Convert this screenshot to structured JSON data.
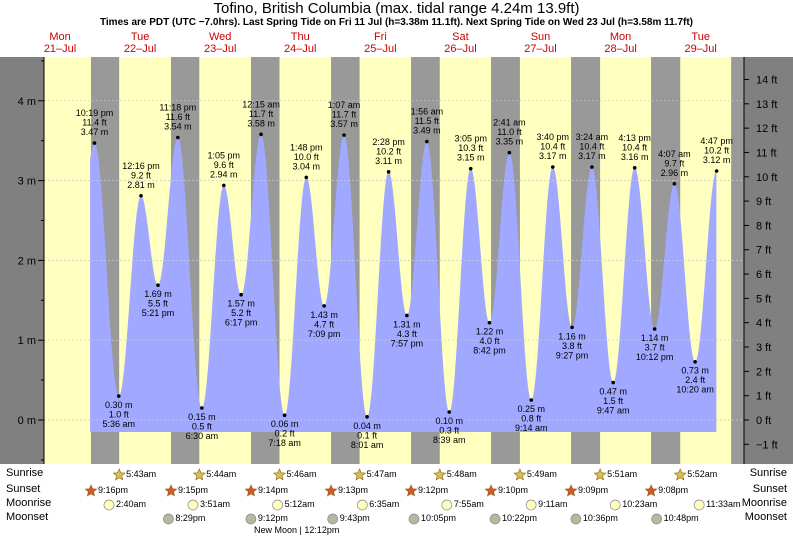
{
  "header": {
    "title": "Tofino, British Columbia (max. tidal range 4.24m 13.9ft)",
    "subtitle": "Times are PDT (UTC −7.0hrs). Last Spring Tide on Fri 11 Jul (h=3.38m 11.1ft). Next Spring Tide on Wed 23 Jul (h=3.58m 11.7ft)"
  },
  "days": [
    {
      "dow": "Mon",
      "date": "21–Jul"
    },
    {
      "dow": "Tue",
      "date": "22–Jul"
    },
    {
      "dow": "Wed",
      "date": "23–Jul"
    },
    {
      "dow": "Thu",
      "date": "24–Jul"
    },
    {
      "dow": "Fri",
      "date": "25–Jul"
    },
    {
      "dow": "Sat",
      "date": "26–Jul"
    },
    {
      "dow": "Sun",
      "date": "27–Jul"
    },
    {
      "dow": "Mon",
      "date": "28–Jul"
    },
    {
      "dow": "Tue",
      "date": "29–Jul"
    }
  ],
  "chart_data": {
    "type": "area",
    "y_left": {
      "unit": "m",
      "ticks": [
        "0 m",
        "1 m",
        "2 m",
        "3 m",
        "4 m"
      ],
      "range": [
        -0.6,
        4.6
      ]
    },
    "y_right": {
      "unit": "ft",
      "ticks": [
        "−1 ft",
        "0 ft",
        "1 ft",
        "2 ft",
        "3 ft",
        "4 ft",
        "5 ft",
        "6 ft",
        "7 ft",
        "8 ft",
        "9 ft",
        "10 ft",
        "11 ft",
        "12 ft",
        "13 ft",
        "14 ft"
      ]
    },
    "grid": true,
    "tides": [
      {
        "day": 0,
        "hour": 22.32,
        "type": "high",
        "m": 3.47,
        "labels": [
          "10:19 pm",
          "11.4 ft",
          "3.47 m"
        ]
      },
      {
        "day": 1,
        "hour": 5.6,
        "type": "low",
        "m": 0.3,
        "labels": [
          "0.30 m",
          "1.0 ft",
          "5:36 am"
        ]
      },
      {
        "day": 1,
        "hour": 12.27,
        "type": "high",
        "m": 2.81,
        "labels": [
          "12:16 pm",
          "9.2 ft",
          "2.81 m"
        ]
      },
      {
        "day": 1,
        "hour": 17.35,
        "type": "low",
        "m": 1.69,
        "labels": [
          "1.69 m",
          "5.5 ft",
          "5:21 pm"
        ]
      },
      {
        "day": 1,
        "hour": 23.3,
        "type": "high",
        "m": 3.54,
        "labels": [
          "11:18 pm",
          "11.6 ft",
          "3.54 m"
        ]
      },
      {
        "day": 2,
        "hour": 6.5,
        "type": "low",
        "m": 0.15,
        "labels": [
          "0.15 m",
          "0.5 ft",
          "6:30 am"
        ]
      },
      {
        "day": 2,
        "hour": 13.08,
        "type": "high",
        "m": 2.94,
        "labels": [
          "1:05 pm",
          "9.6 ft",
          "2.94 m"
        ]
      },
      {
        "day": 2,
        "hour": 18.28,
        "type": "low",
        "m": 1.57,
        "labels": [
          "1.57 m",
          "5.2 ft",
          "6:17 pm"
        ]
      },
      {
        "day": 3,
        "hour": 0.25,
        "type": "high",
        "m": 3.58,
        "labels": [
          "12:15 am",
          "11.7 ft",
          "3.58 m"
        ]
      },
      {
        "day": 3,
        "hour": 7.3,
        "type": "low",
        "m": 0.06,
        "labels": [
          "0.06 m",
          "0.2 ft",
          "7:18 am"
        ]
      },
      {
        "day": 3,
        "hour": 13.8,
        "type": "high",
        "m": 3.04,
        "labels": [
          "1:48 pm",
          "10.0 ft",
          "3.04 m"
        ]
      },
      {
        "day": 3,
        "hour": 19.15,
        "type": "low",
        "m": 1.43,
        "labels": [
          "1.43 m",
          "4.7 ft",
          "7:09 pm"
        ]
      },
      {
        "day": 4,
        "hour": 1.12,
        "type": "high",
        "m": 3.57,
        "labels": [
          "1:07 am",
          "11.7 ft",
          "3.57 m"
        ]
      },
      {
        "day": 4,
        "hour": 8.02,
        "type": "low",
        "m": 0.04,
        "labels": [
          "0.04 m",
          "0.1 ft",
          "8:01 am"
        ]
      },
      {
        "day": 4,
        "hour": 14.47,
        "type": "high",
        "m": 3.11,
        "labels": [
          "2:28 pm",
          "10.2 ft",
          "3.11 m"
        ]
      },
      {
        "day": 4,
        "hour": 19.95,
        "type": "low",
        "m": 1.31,
        "labels": [
          "1.31 m",
          "4.3 ft",
          "7:57 pm"
        ]
      },
      {
        "day": 5,
        "hour": 1.93,
        "type": "high",
        "m": 3.49,
        "labels": [
          "1:56 am",
          "11.5 ft",
          "3.49 m"
        ]
      },
      {
        "day": 5,
        "hour": 8.65,
        "type": "low",
        "m": 0.1,
        "labels": [
          "0.10 m",
          "0.3 ft",
          "8:39 am"
        ]
      },
      {
        "day": 5,
        "hour": 15.08,
        "type": "high",
        "m": 3.15,
        "labels": [
          "3:05 pm",
          "10.3 ft",
          "3.15 m"
        ]
      },
      {
        "day": 5,
        "hour": 20.7,
        "type": "low",
        "m": 1.22,
        "labels": [
          "1.22 m",
          "4.0 ft",
          "8:42 pm"
        ]
      },
      {
        "day": 6,
        "hour": 2.68,
        "type": "high",
        "m": 3.35,
        "labels": [
          "2:41 am",
          "11.0 ft",
          "3.35 m"
        ]
      },
      {
        "day": 6,
        "hour": 9.23,
        "type": "low",
        "m": 0.25,
        "labels": [
          "0.25 m",
          "0.8 ft",
          "9:14 am"
        ]
      },
      {
        "day": 6,
        "hour": 15.67,
        "type": "high",
        "m": 3.17,
        "labels": [
          "3:40 pm",
          "10.4 ft",
          "3.17 m"
        ]
      },
      {
        "day": 6,
        "hour": 21.45,
        "type": "low",
        "m": 1.16,
        "labels": [
          "1.16 m",
          "3.8 ft",
          "9:27 pm"
        ]
      },
      {
        "day": 7,
        "hour": 3.4,
        "type": "high",
        "m": 3.17,
        "labels": [
          "3:24 am",
          "10.4 ft",
          "3.17 m"
        ]
      },
      {
        "day": 7,
        "hour": 9.78,
        "type": "low",
        "m": 0.47,
        "labels": [
          "0.47 m",
          "1.5 ft",
          "9:47 am"
        ]
      },
      {
        "day": 7,
        "hour": 16.22,
        "type": "high",
        "m": 3.16,
        "labels": [
          "4:13 pm",
          "10.4 ft",
          "3.16 m"
        ]
      },
      {
        "day": 7,
        "hour": 22.2,
        "type": "low",
        "m": 1.14,
        "labels": [
          "1.14 m",
          "3.7 ft",
          "10:12 pm"
        ]
      },
      {
        "day": 8,
        "hour": 4.12,
        "type": "high",
        "m": 2.96,
        "labels": [
          "4:07 am",
          "9.7 ft",
          "2.96 m"
        ]
      },
      {
        "day": 8,
        "hour": 10.33,
        "type": "low",
        "m": 0.73,
        "labels": [
          "0.73 m",
          "2.4 ft",
          "10:20 am"
        ]
      },
      {
        "day": 8,
        "hour": 16.78,
        "type": "high",
        "m": 3.12,
        "labels": [
          "4:47 pm",
          "10.2 ft",
          "3.12 m"
        ]
      }
    ]
  },
  "rows": {
    "labels": [
      "Sunrise",
      "Sunset",
      "Moonrise",
      "Moonset"
    ],
    "sunrise": [
      {
        "day": 1,
        "hour": 5.72,
        "text": "5:43am"
      },
      {
        "day": 2,
        "hour": 5.73,
        "text": "5:44am"
      },
      {
        "day": 3,
        "hour": 5.77,
        "text": "5:46am"
      },
      {
        "day": 4,
        "hour": 5.78,
        "text": "5:47am"
      },
      {
        "day": 5,
        "hour": 5.8,
        "text": "5:48am"
      },
      {
        "day": 6,
        "hour": 5.82,
        "text": "5:49am"
      },
      {
        "day": 7,
        "hour": 5.85,
        "text": "5:51am"
      },
      {
        "day": 8,
        "hour": 5.87,
        "text": "5:52am"
      }
    ],
    "sunset": [
      {
        "day": 0,
        "hour": 21.27,
        "text": "9:16pm"
      },
      {
        "day": 1,
        "hour": 21.25,
        "text": "9:15pm"
      },
      {
        "day": 2,
        "hour": 21.23,
        "text": "9:14pm"
      },
      {
        "day": 3,
        "hour": 21.22,
        "text": "9:13pm"
      },
      {
        "day": 4,
        "hour": 21.2,
        "text": "9:12pm"
      },
      {
        "day": 5,
        "hour": 21.17,
        "text": "9:10pm"
      },
      {
        "day": 6,
        "hour": 21.15,
        "text": "9:09pm"
      },
      {
        "day": 7,
        "hour": 21.13,
        "text": "9:08pm"
      }
    ],
    "moonrise": [
      {
        "day": 1,
        "hour": 2.67,
        "text": "2:40am"
      },
      {
        "day": 2,
        "hour": 3.85,
        "text": "3:51am"
      },
      {
        "day": 3,
        "hour": 5.2,
        "text": "5:12am"
      },
      {
        "day": 4,
        "hour": 6.58,
        "text": "6:35am"
      },
      {
        "day": 5,
        "hour": 7.92,
        "text": "7:55am"
      },
      {
        "day": 6,
        "hour": 9.18,
        "text": "9:11am"
      },
      {
        "day": 7,
        "hour": 10.38,
        "text": "10:23am"
      },
      {
        "day": 8,
        "hour": 11.55,
        "text": "11:33am"
      }
    ],
    "moonset": [
      {
        "day": 1,
        "hour": 20.48,
        "text": "8:29pm"
      },
      {
        "day": 2,
        "hour": 21.2,
        "text": "9:12pm"
      },
      {
        "day": 3,
        "hour": 21.72,
        "text": "9:43pm"
      },
      {
        "day": 4,
        "hour": 22.08,
        "text": "10:05pm"
      },
      {
        "day": 5,
        "hour": 22.37,
        "text": "10:22pm"
      },
      {
        "day": 6,
        "hour": 22.6,
        "text": "10:36pm"
      },
      {
        "day": 7,
        "hour": 22.8,
        "text": "10:48pm"
      }
    ],
    "new_moon": "New Moon | 12:12pm"
  },
  "colors": {
    "day": "#ffffc0",
    "night": "#999999",
    "tide": "#a0a8ff",
    "frame": "#808080",
    "grid": "#cccccc",
    "day_label": "#cc0000",
    "sunrise_star": "#e0c040",
    "sunset_star": "#dd5522",
    "moonrise": "#ffffc0",
    "moonset": "#b8b8a0"
  }
}
